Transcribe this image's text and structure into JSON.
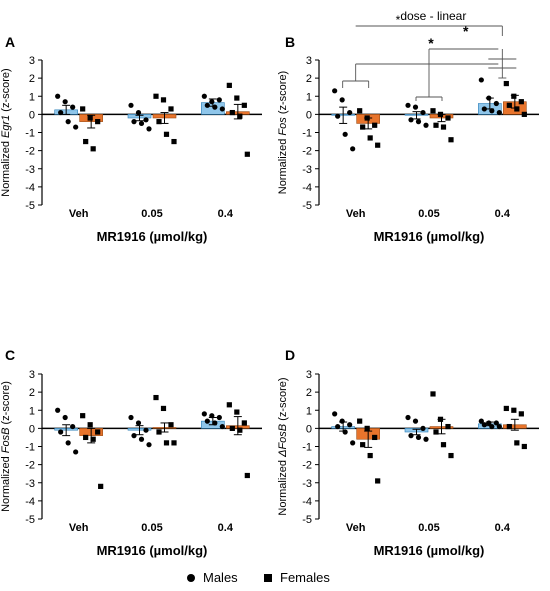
{
  "figure": {
    "legend": [
      {
        "label": "Males",
        "marker": "circle"
      },
      {
        "label": "Females",
        "marker": "square"
      }
    ],
    "colors": {
      "males": "#8fc6ea",
      "females": "#e8742c",
      "male_edge": "#2c7fb8",
      "female_edge": "#9c4a12"
    }
  },
  "chart_data": [
    {
      "type": "bar",
      "panel_label": "A",
      "ylabel_prefix": "Normalized ",
      "ylabel_gene": "Egr1",
      "ylabel_suffix": " (z-score)",
      "xlabel": "MR1916 (µmol/kg)",
      "categories": [
        "Veh",
        "0.05",
        "0.4"
      ],
      "ylim": [
        -5,
        3
      ],
      "yticks": [
        -5,
        -4,
        -3,
        -2,
        -1,
        0,
        1,
        2,
        3
      ],
      "series": [
        {
          "name": "Males",
          "values": [
            0.25,
            -0.2,
            0.65
          ],
          "sem": [
            0.25,
            0.15,
            0.2
          ],
          "points": [
            [
              1.0,
              0.7,
              0.4,
              0.1,
              -0.4,
              -0.7
            ],
            [
              0.5,
              0.1,
              -0.3,
              -0.4,
              -0.5,
              -0.8
            ],
            [
              1.0,
              0.7,
              0.8,
              0.5,
              0.4,
              0.3
            ]
          ]
        },
        {
          "name": "Females",
          "values": [
            -0.4,
            -0.2,
            0.15
          ],
          "sem": [
            0.35,
            0.3,
            0.4
          ],
          "points": [
            [
              0.3,
              -0.2,
              -0.4,
              -1.5,
              -1.9
            ],
            [
              1.0,
              0.8,
              0.3,
              -0.4,
              -1.1,
              -1.5
            ],
            [
              1.6,
              0.9,
              0.5,
              0.1,
              -0.1,
              -2.2
            ]
          ]
        }
      ],
      "annotations": []
    },
    {
      "type": "bar",
      "panel_label": "B",
      "ylabel_prefix": "Normalized ",
      "ylabel_gene": "Fos",
      "ylabel_suffix": " (z-score)",
      "xlabel": "MR1916 (µmol/kg)",
      "categories": [
        "Veh",
        "0.05",
        "0.4"
      ],
      "ylim": [
        -5,
        3
      ],
      "yticks": [
        -5,
        -4,
        -3,
        -2,
        -1,
        0,
        1,
        2,
        3
      ],
      "series": [
        {
          "name": "Males",
          "values": [
            -0.05,
            -0.05,
            0.6
          ],
          "sem": [
            0.45,
            0.2,
            0.3
          ],
          "points": [
            [
              1.3,
              0.8,
              0.1,
              -0.1,
              -1.1,
              -1.9
            ],
            [
              0.5,
              0.4,
              0.1,
              -0.3,
              -0.4,
              -0.6
            ],
            [
              1.9,
              0.9,
              0.6,
              0.3,
              0.2,
              0.1
            ]
          ]
        },
        {
          "name": "Females",
          "values": [
            -0.5,
            -0.2,
            0.7
          ],
          "sem": [
            0.3,
            0.2,
            0.35
          ],
          "points": [
            [
              0.2,
              -0.2,
              -0.6,
              -0.7,
              -1.3,
              -1.7
            ],
            [
              0.2,
              0.0,
              -0.2,
              -0.6,
              -0.7,
              -1.4
            ],
            [
              1.7,
              1.0,
              0.7,
              0.5,
              0.3,
              0.0
            ]
          ]
        }
      ],
      "annotations": [
        "*",
        "*",
        "*",
        "dose - linear"
      ]
    },
    {
      "type": "bar",
      "panel_label": "C",
      "ylabel_prefix": "Normalized ",
      "ylabel_gene": "FosB",
      "ylabel_suffix": " (z-score)",
      "xlabel": "MR1916 (µmol/kg)",
      "categories": [
        "Veh",
        "0.05",
        "0.4"
      ],
      "ylim": [
        -5,
        3
      ],
      "yticks": [
        -5,
        -4,
        -3,
        -2,
        -1,
        0,
        1,
        2,
        3
      ],
      "series": [
        {
          "name": "Males",
          "values": [
            -0.1,
            -0.1,
            0.4
          ],
          "sem": [
            0.3,
            0.25,
            0.2
          ],
          "points": [
            [
              1.0,
              0.6,
              0.1,
              -0.2,
              -0.8,
              -1.3
            ],
            [
              0.6,
              0.3,
              -0.1,
              -0.4,
              -0.6,
              -0.9
            ],
            [
              0.8,
              0.7,
              0.6,
              0.4,
              0.3,
              0.1
            ]
          ]
        },
        {
          "name": "Females",
          "values": [
            -0.4,
            0.05,
            0.15
          ],
          "sem": [
            0.4,
            0.25,
            0.5
          ],
          "points": [
            [
              0.7,
              0.2,
              -0.2,
              -0.5,
              -0.6,
              -3.2
            ],
            [
              1.7,
              1.1,
              0.2,
              -0.2,
              -0.8,
              -0.8
            ],
            [
              1.3,
              0.9,
              0.3,
              0.0,
              -0.1,
              -2.6
            ]
          ]
        }
      ],
      "annotations": []
    },
    {
      "type": "bar",
      "panel_label": "D",
      "ylabel_prefix": "Normalized ",
      "ylabel_gene": "ΔFosB",
      "ylabel_suffix": " (z-score)",
      "xlabel": "MR1916 (µmol/kg)",
      "categories": [
        "Veh",
        "0.05",
        "0.4"
      ],
      "ylim": [
        -5,
        3
      ],
      "yticks": [
        -5,
        -4,
        -3,
        -2,
        -1,
        0,
        1,
        2,
        3
      ],
      "series": [
        {
          "name": "Males",
          "values": [
            0.1,
            -0.2,
            0.25
          ],
          "sem": [
            0.25,
            0.15,
            0.1
          ],
          "points": [
            [
              0.8,
              0.4,
              0.2,
              0.1,
              -0.2,
              -0.8
            ],
            [
              0.6,
              0.4,
              0.0,
              -0.4,
              -0.5,
              -0.6
            ],
            [
              0.4,
              0.3,
              0.3,
              0.2,
              0.1,
              0.1
            ]
          ]
        },
        {
          "name": "Females",
          "values": [
            -0.6,
            0.1,
            0.2
          ],
          "sem": [
            0.45,
            0.4,
            0.3
          ],
          "points": [
            [
              0.4,
              0.0,
              -0.5,
              -0.9,
              -1.5,
              -2.9
            ],
            [
              1.9,
              0.5,
              0.1,
              -0.2,
              -0.9,
              -1.5
            ],
            [
              1.1,
              1.0,
              0.8,
              0.1,
              -0.8,
              -1.0
            ]
          ]
        }
      ],
      "annotations": []
    }
  ]
}
